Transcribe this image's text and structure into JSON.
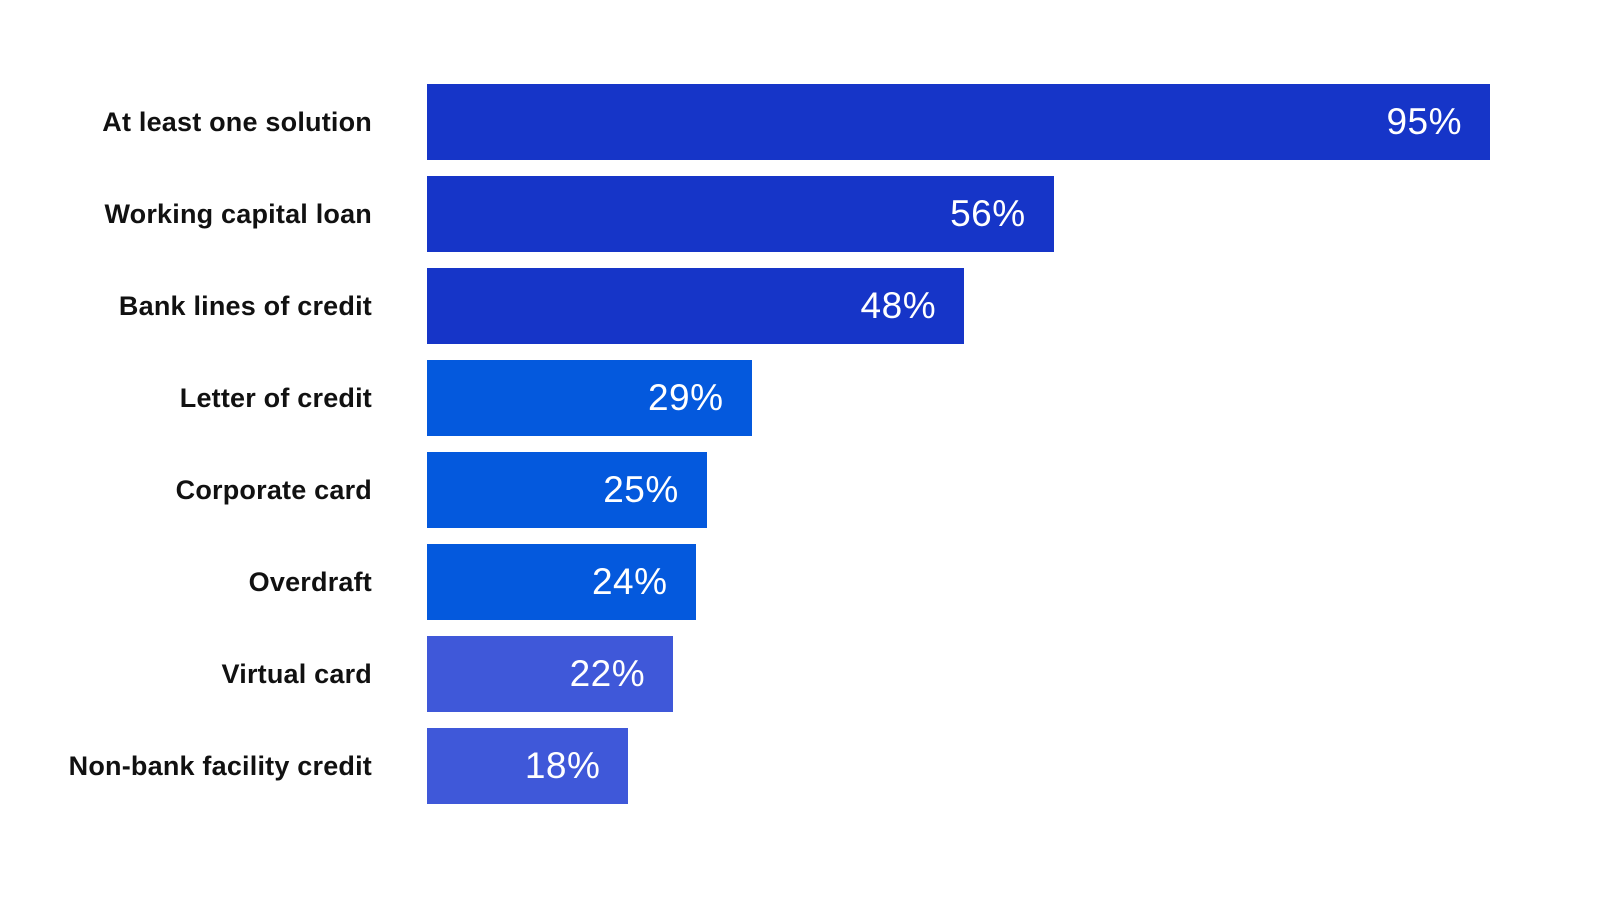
{
  "chart_data": {
    "type": "bar",
    "orientation": "horizontal",
    "title": "",
    "xlabel": "",
    "ylabel": "",
    "xlim": [
      0,
      100
    ],
    "grid": false,
    "legend": false,
    "value_suffix": "%",
    "categories": [
      "At least one solution",
      "Working capital loan",
      "Bank lines of credit",
      "Letter of credit",
      "Corporate card",
      "Overdraft",
      "Virtual card",
      "Non-bank facility credit"
    ],
    "values": [
      95,
      56,
      48,
      29,
      25,
      24,
      22,
      18
    ],
    "bars": [
      {
        "label": "At least one solution",
        "value": 95,
        "display": "95%",
        "color": "#1635c8"
      },
      {
        "label": "Working capital loan",
        "value": 56,
        "display": "56%",
        "color": "#1635c8"
      },
      {
        "label": "Bank lines of credit",
        "value": 48,
        "display": "48%",
        "color": "#1635c8"
      },
      {
        "label": "Letter of credit",
        "value": 29,
        "display": "29%",
        "color": "#0459dd"
      },
      {
        "label": "Corporate card",
        "value": 25,
        "display": "25%",
        "color": "#0459dd"
      },
      {
        "label": "Overdraft",
        "value": 24,
        "display": "24%",
        "color": "#0459dd"
      },
      {
        "label": "Virtual card",
        "value": 22,
        "display": "22%",
        "color": "#3f58d9"
      },
      {
        "label": "Non-bank facility credit",
        "value": 18,
        "display": "18%",
        "color": "#3f58d9"
      }
    ]
  },
  "colors": {
    "background": "#ffffff",
    "category_text": "#111111",
    "value_text": "#ffffff",
    "bar_dark_blue": "#1635c8",
    "bar_bright_blue": "#0459dd",
    "bar_light_indigo": "#3f58d9"
  }
}
